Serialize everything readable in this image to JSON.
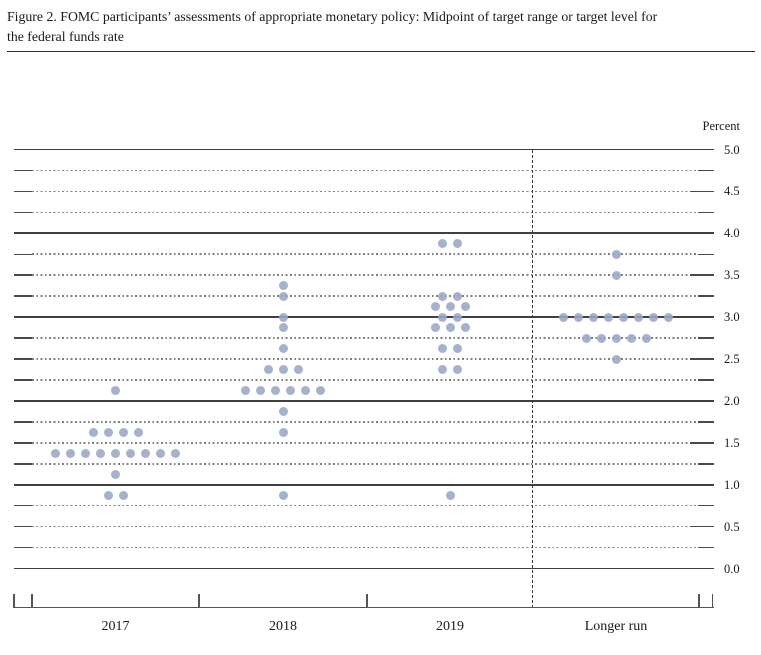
{
  "figure": {
    "title_full": "Figure 2. FOMC participants' assessments of appropriate monetary policy: Midpoint of target range or target level for the federal funds rate",
    "title_line1": "Figure 2. FOMC participants’ assessments of appropriate monetary policy: Midpoint of target range or target level for",
    "title_line2": "the federal funds rate",
    "unit_label": "Percent"
  },
  "chart_data": {
    "type": "scatter",
    "subtype": "fomc-dot-plot",
    "title": "FOMC participants' assessments of appropriate monetary policy: Midpoint of target range or target level for the federal funds rate",
    "ylabel": "Percent",
    "ylim": [
      0.0,
      5.0
    ],
    "y_gridline_step": 0.25,
    "y_label_step": 0.5,
    "y_tick_labels": [
      "5.0",
      "4.5",
      "4.0",
      "3.5",
      "3.0",
      "2.5",
      "2.0",
      "1.5",
      "1.0",
      "0.5",
      "0.0"
    ],
    "grid": "solid lines at integers, dotted lines at quarter increments, short solid end ticks",
    "legend_position": "none",
    "categories": [
      "2017",
      "2018",
      "2019",
      "Longer run"
    ],
    "separator": "vertical dashed line between 2019 and Longer run",
    "dot_color": "#97a7c7",
    "series": [
      {
        "category": "2017",
        "distribution": [
          {
            "rate": 2.125,
            "count": 1
          },
          {
            "rate": 1.625,
            "count": 4
          },
          {
            "rate": 1.375,
            "count": 9
          },
          {
            "rate": 1.125,
            "count": 1
          },
          {
            "rate": 0.875,
            "count": 2
          }
        ]
      },
      {
        "category": "2018",
        "distribution": [
          {
            "rate": 3.375,
            "count": 1
          },
          {
            "rate": 3.25,
            "count": 1
          },
          {
            "rate": 3.0,
            "count": 1
          },
          {
            "rate": 2.875,
            "count": 1
          },
          {
            "rate": 2.625,
            "count": 1
          },
          {
            "rate": 2.375,
            "count": 3
          },
          {
            "rate": 2.125,
            "count": 6
          },
          {
            "rate": 1.875,
            "count": 1
          },
          {
            "rate": 1.625,
            "count": 1
          },
          {
            "rate": 0.875,
            "count": 1
          }
        ]
      },
      {
        "category": "2019",
        "distribution": [
          {
            "rate": 3.875,
            "count": 2
          },
          {
            "rate": 3.25,
            "count": 2
          },
          {
            "rate": 3.125,
            "count": 3
          },
          {
            "rate": 3.0,
            "count": 2
          },
          {
            "rate": 2.875,
            "count": 3
          },
          {
            "rate": 2.625,
            "count": 2
          },
          {
            "rate": 2.375,
            "count": 2
          },
          {
            "rate": 0.875,
            "count": 1
          }
        ]
      },
      {
        "category": "Longer run",
        "distribution": [
          {
            "rate": 3.75,
            "count": 1
          },
          {
            "rate": 3.5,
            "count": 1
          },
          {
            "rate": 3.0,
            "count": 8
          },
          {
            "rate": 2.75,
            "count": 5
          },
          {
            "rate": 2.5,
            "count": 1
          }
        ]
      }
    ]
  }
}
